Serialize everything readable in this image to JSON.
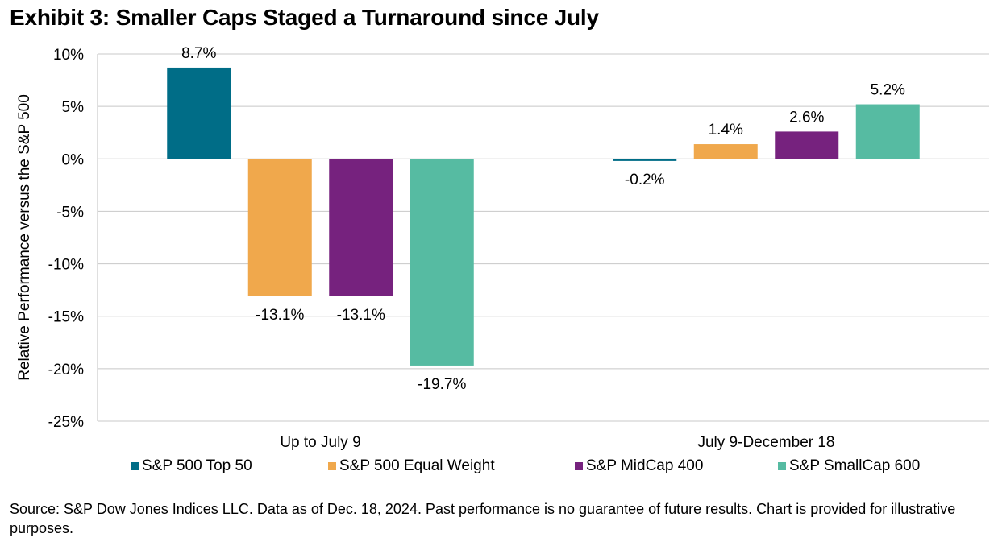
{
  "title": "Exhibit 3: Smaller Caps Staged a Turnaround since July",
  "source_note": "Source: S&P Dow Jones Indices LLC. Data as of Dec. 18, 2024. Past performance is no guarantee of future results. Chart is provided for illustrative purposes.",
  "chart_data": {
    "type": "bar",
    "title": "Exhibit 3: Smaller Caps Staged a Turnaround since July",
    "xlabel": "",
    "ylabel": "Relative Performance versus the S&P 500",
    "ylim": [
      -25,
      10
    ],
    "yticks": [
      10,
      5,
      0,
      -5,
      -10,
      -15,
      -20,
      -25
    ],
    "ytick_labels": [
      "10%",
      "5%",
      "0%",
      "-5%",
      "-10%",
      "-15%",
      "-20%",
      "-25%"
    ],
    "grid": true,
    "legend_position": "bottom",
    "categories": [
      "Up to July 9",
      "July 9-December 18"
    ],
    "series": [
      {
        "name": "S&P 500 Top 50",
        "color": "#006D87",
        "values": [
          8.7,
          -0.2
        ],
        "labels": [
          "8.7%",
          "-0.2%"
        ]
      },
      {
        "name": "S&P 500 Equal Weight",
        "color": "#F0A84C",
        "values": [
          -13.1,
          1.4
        ],
        "labels": [
          "-13.1%",
          "1.4%"
        ]
      },
      {
        "name": "S&P MidCap 400",
        "color": "#76227E",
        "values": [
          -13.1,
          2.6
        ],
        "labels": [
          "-13.1%",
          "2.6%"
        ]
      },
      {
        "name": "S&P SmallCap 600",
        "color": "#56BBA2",
        "values": [
          -19.7,
          5.2
        ],
        "labels": [
          "-19.7%",
          "5.2%"
        ]
      }
    ]
  }
}
